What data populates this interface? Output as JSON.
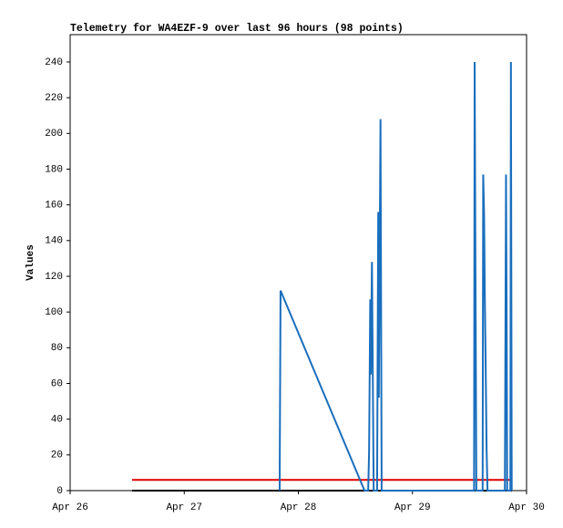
{
  "chart_data": {
    "type": "line",
    "title": "Telemetry for WA4EZF-9 over last 96 hours (98 points)",
    "y_label": "Values",
    "xlim": [
      0,
      4
    ],
    "xticks": [
      {
        "value": 0,
        "label": "Apr 26"
      },
      {
        "value": 1,
        "label": "Apr 27"
      },
      {
        "value": 2,
        "label": "Apr 28"
      },
      {
        "value": 3,
        "label": "Apr 29"
      },
      {
        "value": 4,
        "label": "Apr 30"
      }
    ],
    "ylim": [
      0,
      255.3
    ],
    "yticks": [
      0,
      20,
      40,
      60,
      80,
      100,
      120,
      140,
      160,
      180,
      200,
      220,
      240
    ],
    "grid": false,
    "series": [
      {
        "color": "#e00000",
        "x": [
          0.543,
          3.872
        ],
        "values": [
          6,
          6
        ]
      },
      {
        "color": "#000000",
        "x": [
          0.543,
          3.872
        ],
        "values": [
          0,
          0
        ]
      },
      {
        "color": "#1a6ebd",
        "x": [
          1.836,
          1.844,
          2.58,
          2.612,
          2.62,
          2.63,
          2.635,
          2.645,
          2.66,
          2.69,
          2.7,
          2.705,
          2.72,
          2.73,
          3.54,
          3.545,
          3.56,
          3.615,
          3.62,
          3.628,
          3.634,
          3.642,
          3.65,
          3.658,
          3.81,
          3.815,
          3.82,
          3.826,
          3.83,
          3.858,
          3.863,
          3.87
        ],
        "values": [
          0,
          112,
          0,
          0,
          22,
          107,
          65,
          128,
          0,
          0,
          156,
          52,
          208,
          0,
          0,
          240,
          0,
          0,
          177,
          154,
          110,
          67,
          22,
          0,
          0,
          88,
          177,
          88,
          0,
          0,
          240,
          0
        ]
      }
    ]
  }
}
